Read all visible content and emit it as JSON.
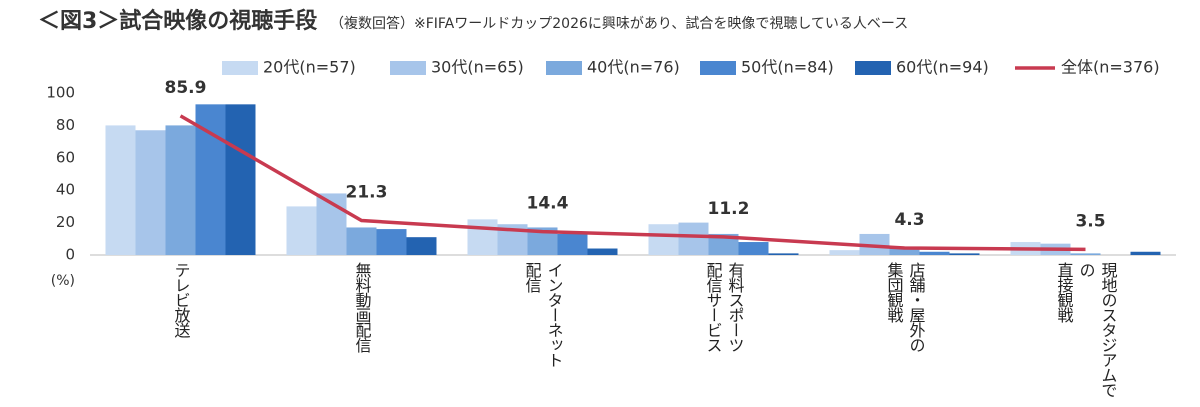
{
  "chart_data": {
    "type": "bar",
    "title": "＜図3＞試合映像の視聴手段",
    "subtitle": "（複数回答）※FIFAワールドカップ2026に興味があり、試合を映像で視聴している人ベース",
    "y_unit": "(%)",
    "categories": [
      "テレビ放送",
      "無料動画配信",
      "インターネット\n配信",
      "有料スポーツ\n配信サービス",
      "店舗・屋外の\n集団観戦",
      "現地のスタジアムでの\n直接観戦"
    ],
    "ylim": [
      0,
      100
    ],
    "yticks": [
      0,
      20,
      40,
      60,
      80,
      100
    ],
    "series": [
      {
        "name": "20代(n=57)",
        "color": "#c6daf2",
        "values": [
          80,
          30,
          22,
          19,
          3,
          8
        ]
      },
      {
        "name": "30代(n=65)",
        "color": "#a7c5ea",
        "values": [
          77,
          38,
          19,
          20,
          13,
          7
        ]
      },
      {
        "name": "40代(n=76)",
        "color": "#7ba9dd",
        "values": [
          80,
          17,
          17,
          13,
          5,
          1
        ]
      },
      {
        "name": "50代(n=84)",
        "color": "#4a86d0",
        "values": [
          93,
          16,
          13,
          8,
          2,
          0
        ]
      },
      {
        "name": "60代(n=94)",
        "color": "#2363b1",
        "values": [
          93,
          11,
          4,
          1,
          1,
          2
        ]
      },
      {
        "name": "全体(n=376)",
        "color": "#c83a50",
        "type": "line",
        "values": [
          85.9,
          21.3,
          14.4,
          11.2,
          4.3,
          3.5
        ]
      }
    ]
  }
}
